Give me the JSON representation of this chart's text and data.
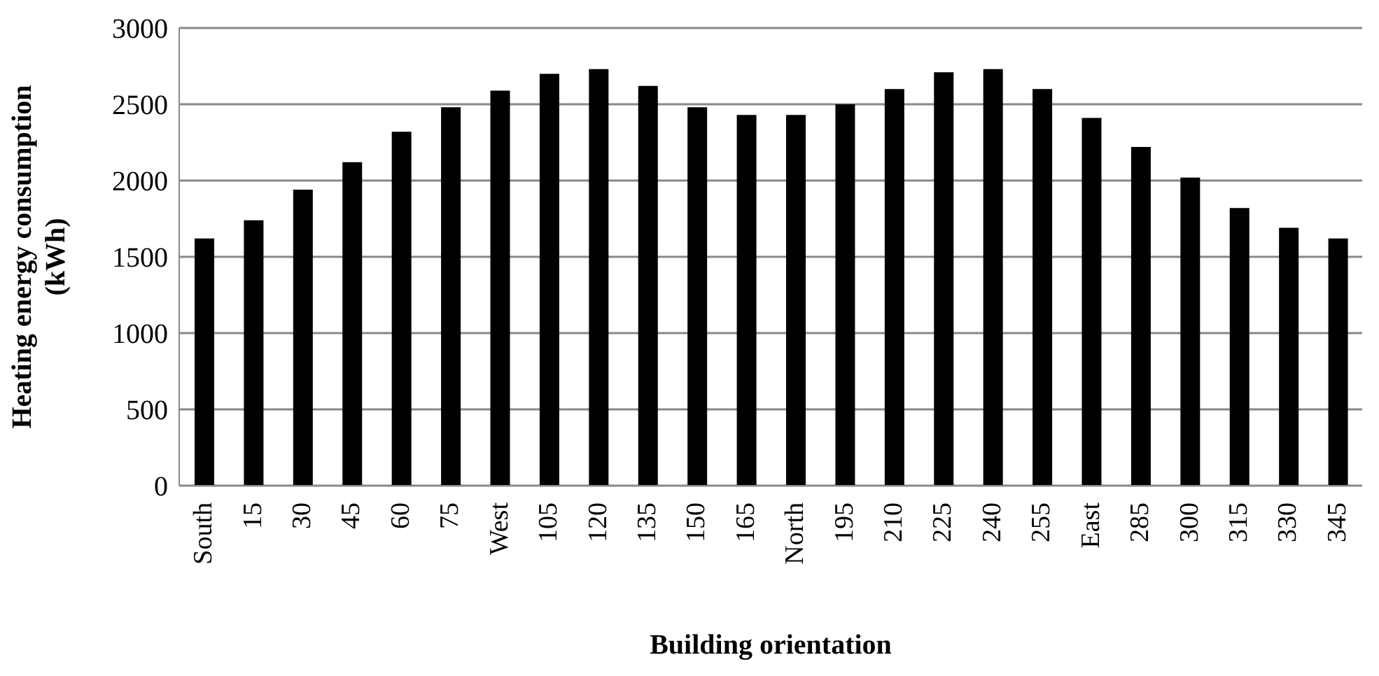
{
  "chart_data": {
    "type": "bar",
    "xlabel": "Building orientation",
    "ylabel": "Heating energy consumption (kWh)",
    "categories": [
      "South",
      "15",
      "30",
      "45",
      "60",
      "75",
      "West",
      "105",
      "120",
      "135",
      "150",
      "165",
      "North",
      "195",
      "210",
      "225",
      "240",
      "255",
      "East",
      "285",
      "300",
      "315",
      "330",
      "345"
    ],
    "values": [
      1620,
      1740,
      1940,
      2120,
      2320,
      2480,
      2590,
      2700,
      2730,
      2620,
      2480,
      2430,
      2430,
      2500,
      2600,
      2710,
      2730,
      2600,
      2410,
      2220,
      2020,
      1820,
      1690,
      1620
    ],
    "color": "#000000",
    "ylim": [
      0,
      3000
    ],
    "yticks": [
      0,
      500,
      1000,
      1500,
      2000,
      2500,
      3000
    ],
    "grid": "y"
  }
}
